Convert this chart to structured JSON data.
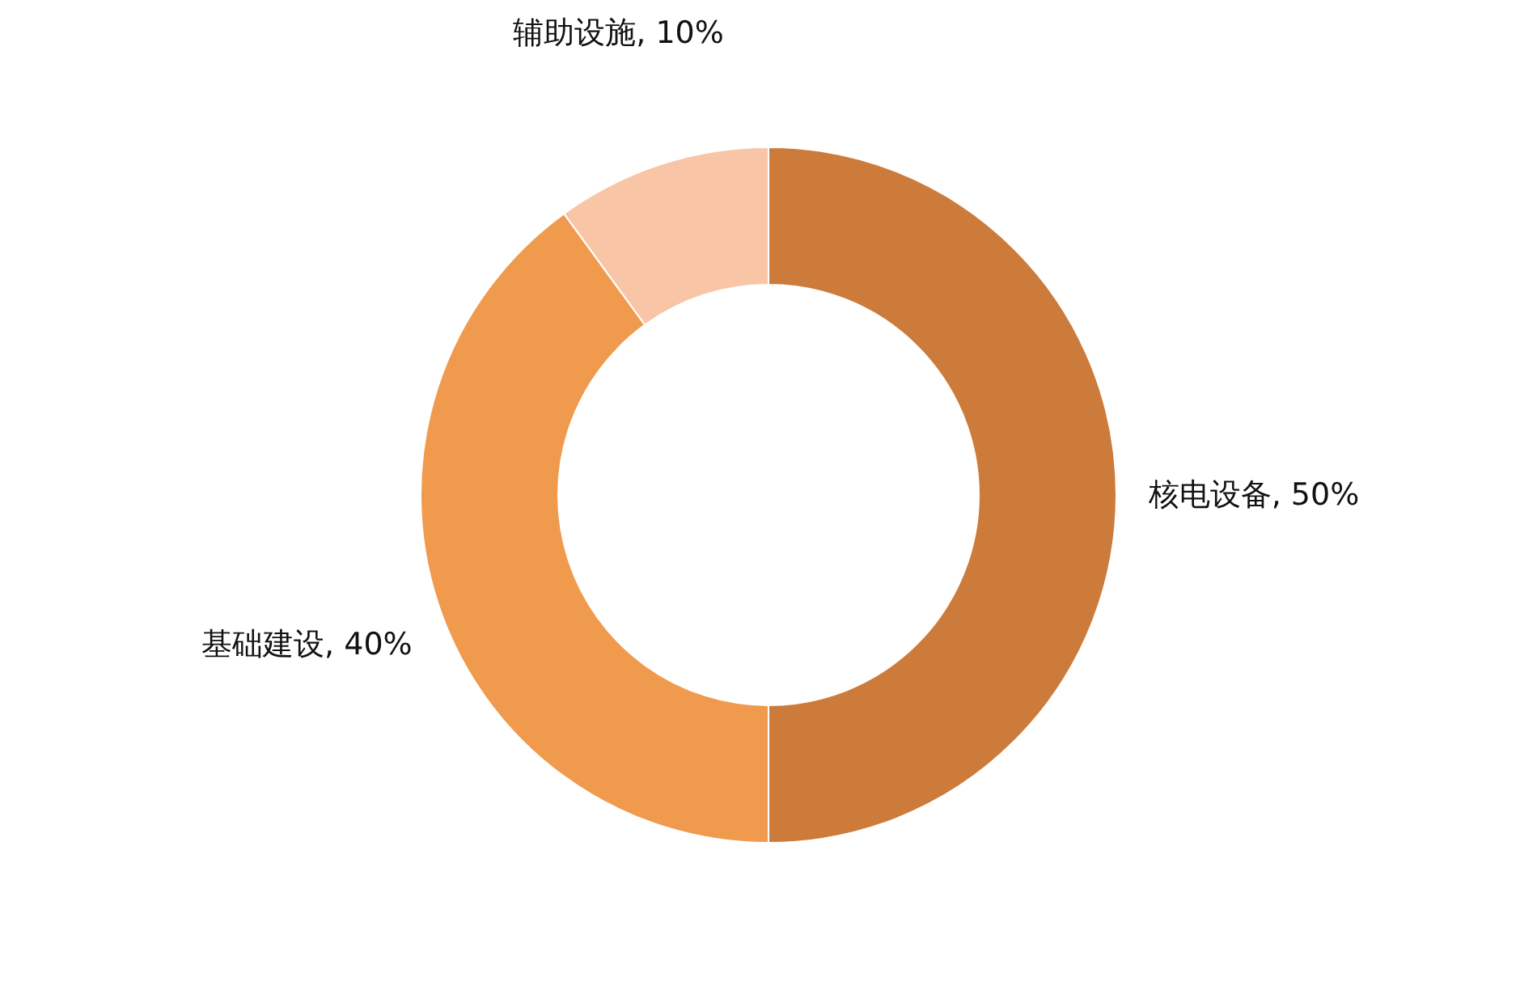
{
  "chart_data": {
    "type": "donut",
    "categories": [
      "核电设备",
      "基础建设",
      "辅助设施"
    ],
    "values": [
      50,
      40,
      10
    ],
    "value_labels": [
      "50%",
      "40%",
      "10%"
    ],
    "colors": [
      "#cd7b3b",
      "#f09a4e",
      "#f8c5a6"
    ]
  }
}
